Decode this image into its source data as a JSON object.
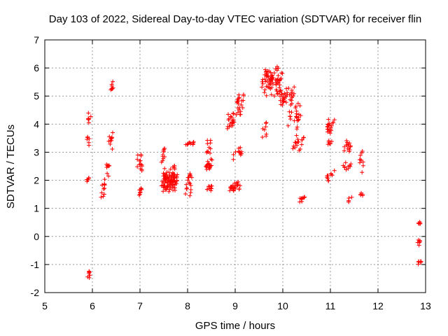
{
  "chart_data": {
    "type": "scatter",
    "title": "Day 103 of 2022, Sidereal Day-to-day VTEC variation (SDTVAR) for receiver flin",
    "xlabel": "GPS time / hours",
    "ylabel": "SDTVAR / TECUs",
    "xlim": [
      5,
      13
    ],
    "ylim": [
      -2,
      7
    ],
    "x_ticks": [
      5,
      6,
      7,
      8,
      9,
      10,
      11,
      12,
      13
    ],
    "y_ticks": [
      -2,
      -1,
      0,
      1,
      2,
      3,
      4,
      5,
      6,
      7
    ],
    "x_tick_labels": [
      "5",
      "6",
      "7",
      "8",
      "9",
      "10",
      "11",
      "12",
      "13"
    ],
    "y_tick_labels": [
      "-2",
      "-1",
      "0",
      "1",
      "2",
      "3",
      "4",
      "5",
      "6",
      "7"
    ],
    "grid": true,
    "marker": "+",
    "color": "#ff0000",
    "clusters": [
      {
        "x": [
          5.9,
          5.95
        ],
        "y": [
          -1.55,
          -1.15
        ],
        "n": 8
      },
      {
        "x": [
          5.88,
          5.95
        ],
        "y": [
          1.8,
          2.2
        ],
        "n": 6
      },
      {
        "x": [
          5.88,
          5.95
        ],
        "y": [
          3.2,
          3.6
        ],
        "n": 6
      },
      {
        "x": [
          5.9,
          5.97
        ],
        "y": [
          4.0,
          4.45
        ],
        "n": 6
      },
      {
        "x": [
          6.18,
          6.3
        ],
        "y": [
          1.3,
          2.1
        ],
        "n": 12
      },
      {
        "x": [
          6.28,
          6.36
        ],
        "y": [
          2.1,
          2.7
        ],
        "n": 8
      },
      {
        "x": [
          6.33,
          6.45
        ],
        "y": [
          3.0,
          3.9
        ],
        "n": 10
      },
      {
        "x": [
          6.38,
          6.45
        ],
        "y": [
          5.0,
          5.6
        ],
        "n": 8
      },
      {
        "x": [
          6.95,
          7.06
        ],
        "y": [
          1.4,
          1.9
        ],
        "n": 10
      },
      {
        "x": [
          6.93,
          7.03
        ],
        "y": [
          2.3,
          3.0
        ],
        "n": 10
      },
      {
        "x": [
          7.02,
          7.06
        ],
        "y": [
          2.3,
          2.6
        ],
        "n": 4
      },
      {
        "x": [
          7.45,
          7.8
        ],
        "y": [
          1.5,
          2.5
        ],
        "n": 90
      },
      {
        "x": [
          7.45,
          7.55
        ],
        "y": [
          2.5,
          3.2
        ],
        "n": 10
      },
      {
        "x": [
          7.68,
          7.74
        ],
        "y": [
          2.3,
          2.6
        ],
        "n": 5
      },
      {
        "x": [
          7.95,
          8.1
        ],
        "y": [
          1.4,
          2.4
        ],
        "n": 18
      },
      {
        "x": [
          7.95,
          8.15
        ],
        "y": [
          3.2,
          3.45
        ],
        "n": 10
      },
      {
        "x": [
          8.38,
          8.52
        ],
        "y": [
          1.6,
          1.85
        ],
        "n": 10
      },
      {
        "x": [
          8.38,
          8.52
        ],
        "y": [
          2.3,
          2.8
        ],
        "n": 18
      },
      {
        "x": [
          8.38,
          8.5
        ],
        "y": [
          2.9,
          3.5
        ],
        "n": 10
      },
      {
        "x": [
          8.85,
          9.15
        ],
        "y": [
          1.5,
          2.0
        ],
        "n": 25
      },
      {
        "x": [
          8.82,
          9.0
        ],
        "y": [
          3.7,
          4.5
        ],
        "n": 20
      },
      {
        "x": [
          8.95,
          9.15
        ],
        "y": [
          2.7,
          3.2
        ],
        "n": 12
      },
      {
        "x": [
          9.0,
          9.2
        ],
        "y": [
          4.1,
          5.2
        ],
        "n": 22
      },
      {
        "x": [
          9.55,
          9.7
        ],
        "y": [
          3.3,
          4.2
        ],
        "n": 8
      },
      {
        "x": [
          9.55,
          9.8
        ],
        "y": [
          4.9,
          6.3
        ],
        "n": 40
      },
      {
        "x": [
          9.7,
          10.0
        ],
        "y": [
          4.8,
          6.2
        ],
        "n": 40
      },
      {
        "x": [
          9.9,
          10.25
        ],
        "y": [
          4.6,
          5.4
        ],
        "n": 35
      },
      {
        "x": [
          10.1,
          10.4
        ],
        "y": [
          3.8,
          4.8
        ],
        "n": 25
      },
      {
        "x": [
          10.2,
          10.45
        ],
        "y": [
          3.0,
          3.8
        ],
        "n": 18
      },
      {
        "x": [
          10.35,
          10.5
        ],
        "y": [
          1.2,
          1.5
        ],
        "n": 10
      },
      {
        "x": [
          10.9,
          11.1
        ],
        "y": [
          3.6,
          4.3
        ],
        "n": 20
      },
      {
        "x": [
          10.95,
          11.05
        ],
        "y": [
          3.1,
          3.5
        ],
        "n": 6
      },
      {
        "x": [
          10.9,
          11.1
        ],
        "y": [
          1.9,
          2.5
        ],
        "n": 12
      },
      {
        "x": [
          11.25,
          11.45
        ],
        "y": [
          2.9,
          3.5
        ],
        "n": 14
      },
      {
        "x": [
          11.25,
          11.45
        ],
        "y": [
          2.3,
          2.7
        ],
        "n": 10
      },
      {
        "x": [
          11.35,
          11.45
        ],
        "y": [
          1.2,
          1.4
        ],
        "n": 5
      },
      {
        "x": [
          11.6,
          11.7
        ],
        "y": [
          2.2,
          3.1
        ],
        "n": 10
      },
      {
        "x": [
          11.6,
          11.7
        ],
        "y": [
          1.4,
          1.6
        ],
        "n": 5
      },
      {
        "x": [
          12.82,
          12.92
        ],
        "y": [
          0.4,
          0.55
        ],
        "n": 5
      },
      {
        "x": [
          12.82,
          12.92
        ],
        "y": [
          -0.4,
          0.0
        ],
        "n": 6
      },
      {
        "x": [
          12.82,
          12.92
        ],
        "y": [
          -1.0,
          -0.8
        ],
        "n": 6
      }
    ]
  }
}
